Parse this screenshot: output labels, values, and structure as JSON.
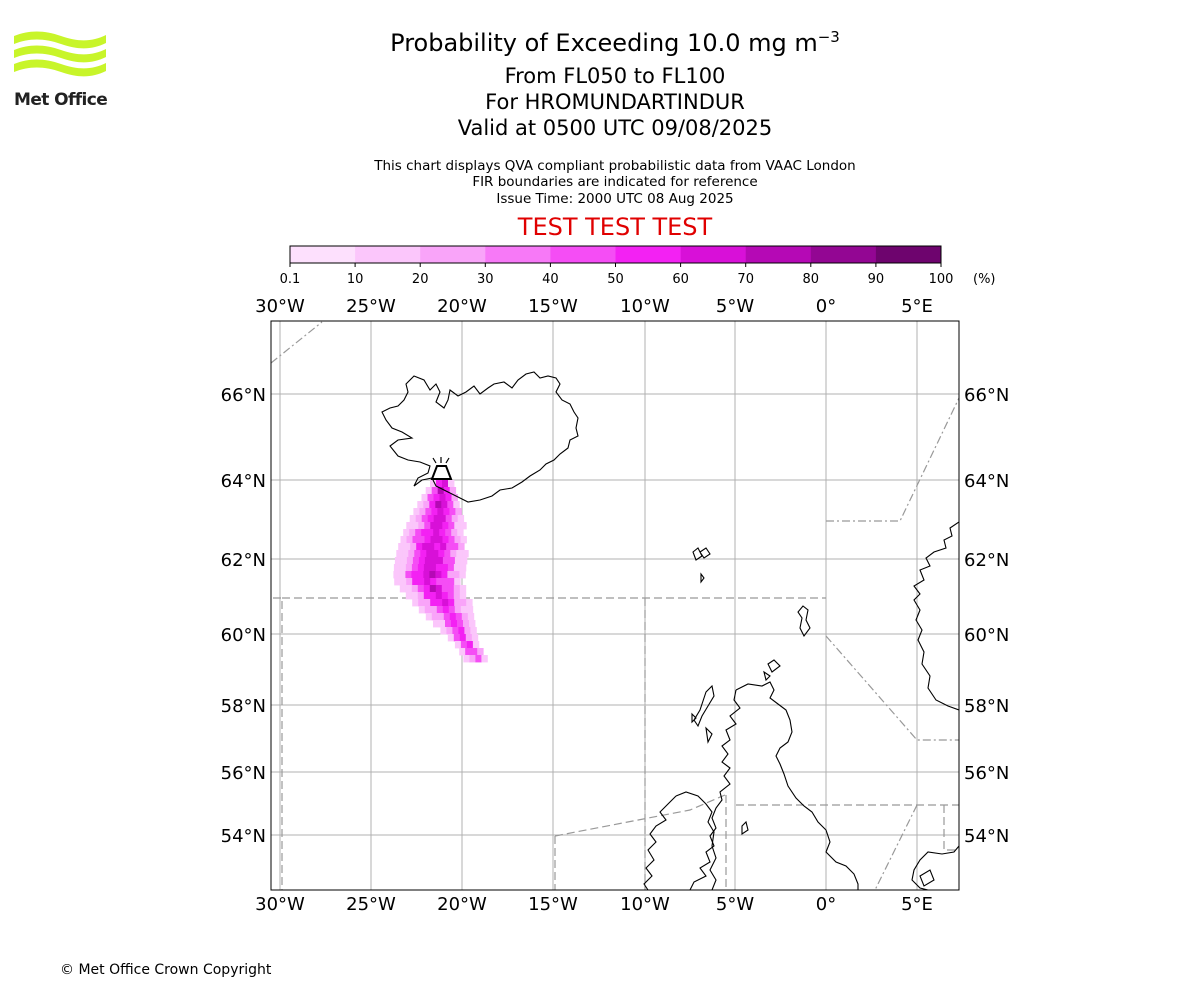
{
  "header": {
    "brand": "Met Office",
    "title_prefix": "Probability of Exceeding 10.0 mg m",
    "title_exponent": "−3",
    "level": "From FL050 to FL100",
    "volcano": "For HROMUNDARTINDUR",
    "valid": "Valid at 0500 UTC 09/08/2025",
    "info_lines": [
      "This chart displays QVA compliant probabilistic data from VAAC London",
      "FIR boundaries are indicated for reference",
      "Issue Time: 2000 UTC 08 Aug 2025"
    ],
    "test_banner": "TEST TEST TEST"
  },
  "colorbar": {
    "ticks": [
      "0.1",
      "10",
      "20",
      "30",
      "40",
      "50",
      "60",
      "70",
      "80",
      "90",
      "100"
    ],
    "unit": "(%)",
    "colors": [
      "#fde0fd",
      "#fbc6fb",
      "#f9a4f9",
      "#f779f7",
      "#f54df5",
      "#f321f3",
      "#d810d8",
      "#b509b5",
      "#930693",
      "#6e046e"
    ]
  },
  "map": {
    "lon_labels": [
      "30°W",
      "25°W",
      "20°W",
      "15°W",
      "10°W",
      "5°W",
      "0°",
      "5°E"
    ],
    "lat_labels": [
      "66°N",
      "64°N",
      "62°N",
      "60°N",
      "58°N",
      "56°N",
      "54°N"
    ],
    "plume_colors": [
      "#fbc6fb",
      "#f9a4f9",
      "#f54df5",
      "#f321f3",
      "#d810d8",
      "#b509b5",
      "#6e046e"
    ],
    "volcano_marker": "volcano-icon"
  },
  "footer": {
    "copyright": "© Met Office Crown Copyright"
  }
}
